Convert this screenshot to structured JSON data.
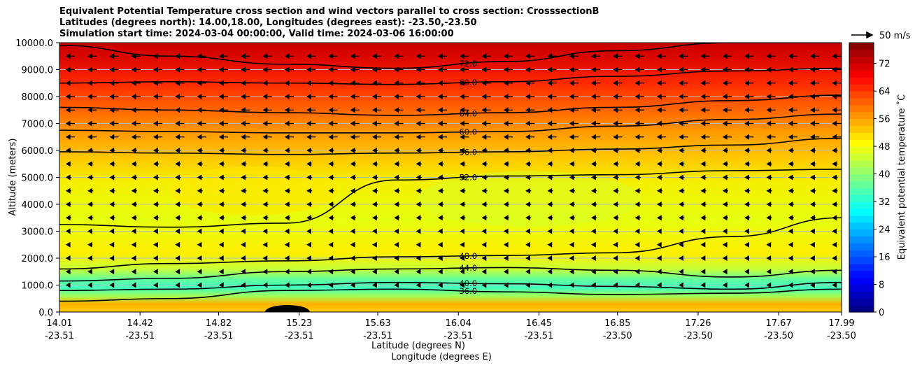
{
  "chart_data": {
    "type": "heatmap",
    "title_lines": [
      "Equivalent Potential Temperature cross section and wind vectors parallel to cross section: CrosssectionB",
      "Latitudes (degrees north): 14.00,18.00, Longitudes (degrees east): -23.50,-23.50",
      "Simulation start time: 2024-03-04 00:00:00, Valid time: 2024-03-06 16:00:00"
    ],
    "xlabel_lines": [
      "Latitude (degrees N)",
      "Longitude (degrees E)"
    ],
    "ylabel": "Altitude (meters)",
    "x_ticks": [
      {
        "lat": "14.01",
        "lon": "-23.51",
        "v": 14.01
      },
      {
        "lat": "14.42",
        "lon": "-23.51",
        "v": 14.42
      },
      {
        "lat": "14.82",
        "lon": "-23.51",
        "v": 14.82
      },
      {
        "lat": "15.23",
        "lon": "-23.51",
        "v": 15.23
      },
      {
        "lat": "15.63",
        "lon": "-23.51",
        "v": 15.63
      },
      {
        "lat": "16.04",
        "lon": "-23.51",
        "v": 16.04
      },
      {
        "lat": "16.45",
        "lon": "-23.51",
        "v": 16.45
      },
      {
        "lat": "16.85",
        "lon": "-23.50",
        "v": 16.85
      },
      {
        "lat": "17.26",
        "lon": "-23.50",
        "v": 17.26
      },
      {
        "lat": "17.67",
        "lon": "-23.50",
        "v": 17.67
      },
      {
        "lat": "17.99",
        "lon": "-23.50",
        "v": 17.99
      }
    ],
    "y_ticks": [
      "0.0",
      "1000.0",
      "2000.0",
      "3000.0",
      "4000.0",
      "5000.0",
      "6000.0",
      "7000.0",
      "8000.0",
      "9000.0",
      "10000.0"
    ],
    "xlim": [
      14.01,
      17.99
    ],
    "ylim": [
      0,
      10000
    ],
    "grid": "horizontal",
    "colorbar": {
      "label": "Equivalent potential temperature ˚C",
      "ticks": [
        "0",
        "8",
        "16",
        "24",
        "32",
        "40",
        "48",
        "56",
        "64",
        "72"
      ],
      "range": [
        0,
        78
      ],
      "colormap": "jet"
    },
    "wind_key": {
      "label": "50 m/s",
      "position": "top-right"
    },
    "contours": [
      {
        "level": 72,
        "label": "72.0",
        "alt": [
          9900,
          9500,
          9200,
          9050,
          9300,
          9700,
          10000,
          10000
        ]
      },
      {
        "level": 68,
        "label": "68.0",
        "alt": [
          8500,
          8550,
          8500,
          8450,
          8550,
          8750,
          8950,
          9050
        ]
      },
      {
        "level": 64,
        "label": "64.0",
        "alt": [
          7600,
          7500,
          7400,
          7300,
          7400,
          7600,
          7850,
          8050
        ]
      },
      {
        "level": 60,
        "label": "60.0",
        "alt": [
          6750,
          6700,
          6650,
          6650,
          6700,
          6900,
          7150,
          7350
        ]
      },
      {
        "level": 56,
        "label": "56.0",
        "alt": [
          5950,
          5900,
          5850,
          5900,
          5950,
          6050,
          6200,
          6450
        ]
      },
      {
        "level": 52,
        "label": "52.0",
        "alt": [
          3250,
          3150,
          3300,
          4900,
          5050,
          5100,
          5250,
          5300
        ]
      },
      {
        "level": 48,
        "label": "48.0",
        "alt": [
          1600,
          1800,
          1900,
          2050,
          2100,
          2200,
          2800,
          3500
        ]
      },
      {
        "level": 44,
        "label": "44.0",
        "alt": [
          1150,
          1250,
          1500,
          1600,
          1650,
          1550,
          1300,
          1550
        ]
      },
      {
        "level": 40,
        "label": "40.0",
        "alt": [
          800,
          850,
          1000,
          1100,
          1050,
          950,
          850,
          1100
        ]
      },
      {
        "level": 36,
        "label": "36.0",
        "alt": [
          400,
          500,
          800,
          850,
          750,
          650,
          700,
          850
        ]
      }
    ],
    "series": [
      {
        "x_km_fraction": [
          0.0,
          0.14,
          0.29,
          0.43,
          0.57,
          0.71,
          0.86,
          1.0
        ]
      }
    ]
  }
}
